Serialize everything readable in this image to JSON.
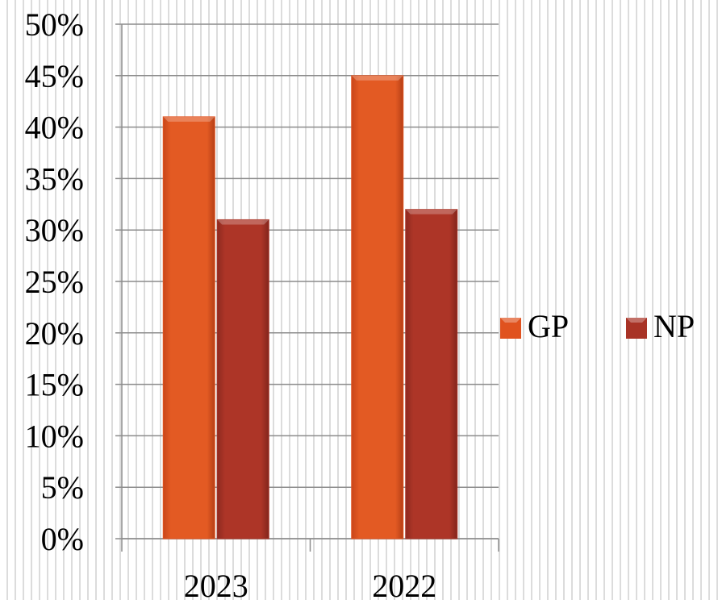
{
  "chart_data": {
    "type": "bar",
    "title": "",
    "xlabel": "",
    "ylabel": "",
    "categories": [
      "2023",
      "2022"
    ],
    "series": [
      {
        "name": "GP",
        "values": [
          41,
          45
        ],
        "color": "#e0521f"
      },
      {
        "name": "NP",
        "values": [
          31,
          32
        ],
        "color": "#a83326"
      }
    ],
    "ylim": [
      0,
      50
    ],
    "yticks": [
      "0%",
      "5%",
      "10%",
      "15%",
      "20%",
      "25%",
      "30%",
      "35%",
      "40%",
      "45%",
      "50%"
    ],
    "y_unit": "%",
    "grid": true,
    "legend_position": "right"
  }
}
